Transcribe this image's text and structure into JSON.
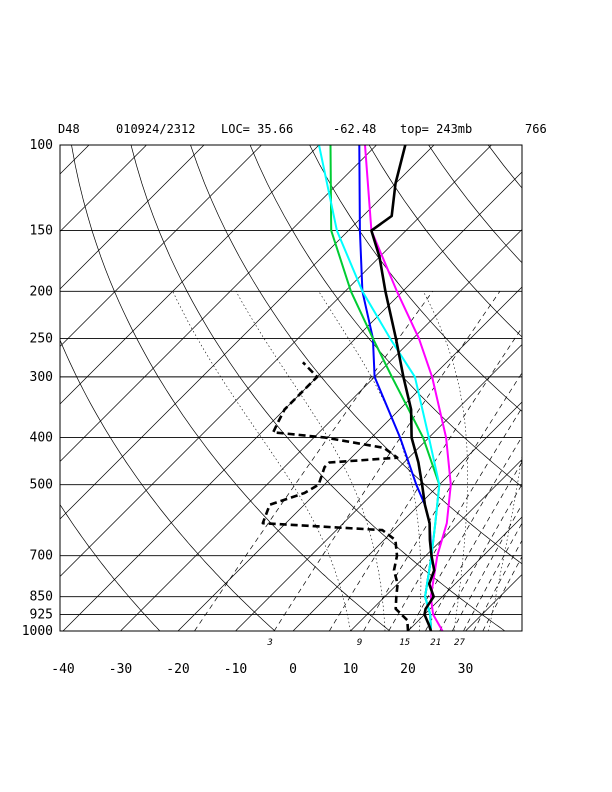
{
  "header": {
    "model": "D48",
    "datetime": "010924/2312",
    "loc": "LOC= 35.66",
    "lon": "-62.48",
    "top": "top= 243mb",
    "code": "766"
  },
  "chart_data": {
    "type": "line",
    "title": "",
    "skew_t": true,
    "y_log_scale": true,
    "xlabel": "",
    "ylabel": "",
    "xlim": [
      -40,
      40
    ],
    "ylim": [
      1000,
      100
    ],
    "x_ticks": [
      -40,
      -30,
      -20,
      -10,
      0,
      10,
      20,
      30
    ],
    "y_ticks": [
      100,
      150,
      200,
      250,
      300,
      400,
      500,
      700,
      850,
      925,
      1000
    ],
    "mixing_ratio_labels": [
      "3",
      "9",
      "15",
      "21",
      "27"
    ],
    "colors": {
      "temperature": "#000000",
      "dewpoint": "#000000",
      "parcel_blue": "#0000ff",
      "parcel_green": "#00cc33",
      "parcel_cyan": "#00ffff",
      "parcel_magenta": "#ff00ff"
    },
    "series": [
      {
        "key": "temperature",
        "style": "solid",
        "points": [
          [
            1000,
            24
          ],
          [
            970,
            22.5
          ],
          [
            925,
            20
          ],
          [
            900,
            19.2
          ],
          [
            850,
            18.5
          ],
          [
            800,
            15.5
          ],
          [
            750,
            14
          ],
          [
            700,
            11
          ],
          [
            650,
            8
          ],
          [
            600,
            5
          ],
          [
            550,
            1
          ],
          [
            500,
            -3
          ],
          [
            450,
            -7.5
          ],
          [
            400,
            -13
          ],
          [
            350,
            -18
          ],
          [
            300,
            -25
          ],
          [
            250,
            -33
          ],
          [
            200,
            -43
          ],
          [
            170,
            -50
          ],
          [
            150,
            -56
          ],
          [
            140,
            -55
          ],
          [
            120,
            -60
          ],
          [
            100,
            -65
          ]
        ]
      },
      {
        "key": "dewpoint",
        "style": "dashed",
        "points": [
          [
            1000,
            20
          ],
          [
            950,
            18
          ],
          [
            900,
            14
          ],
          [
            850,
            12
          ],
          [
            800,
            10
          ],
          [
            750,
            7
          ],
          [
            700,
            5
          ],
          [
            650,
            2
          ],
          [
            620,
            -2
          ],
          [
            600,
            -24
          ],
          [
            550,
            -26
          ],
          [
            520,
            -22
          ],
          [
            500,
            -21
          ],
          [
            460,
            -23
          ],
          [
            450,
            -23
          ],
          [
            440,
            -12
          ],
          [
            420,
            -16
          ],
          [
            400,
            -28
          ],
          [
            390,
            -38
          ],
          [
            370,
            -39
          ],
          [
            350,
            -40
          ],
          [
            300,
            -40
          ],
          [
            280,
            -45
          ]
        ]
      },
      {
        "key": "parcel_blue",
        "style": "solid",
        "points": [
          [
            1000,
            24
          ],
          [
            925,
            21
          ],
          [
            850,
            17
          ],
          [
            700,
            11
          ],
          [
            600,
            5
          ],
          [
            550,
            1
          ],
          [
            500,
            -4
          ],
          [
            400,
            -15
          ],
          [
            300,
            -30
          ],
          [
            250,
            -37
          ],
          [
            200,
            -47
          ],
          [
            150,
            -58
          ],
          [
            100,
            -73
          ]
        ]
      },
      {
        "key": "parcel_green",
        "style": "solid",
        "points": [
          [
            1000,
            24
          ],
          [
            925,
            21
          ],
          [
            850,
            17
          ],
          [
            700,
            11
          ],
          [
            600,
            6
          ],
          [
            500,
            0
          ],
          [
            400,
            -11
          ],
          [
            300,
            -27
          ],
          [
            250,
            -37
          ],
          [
            200,
            -49
          ],
          [
            150,
            -63
          ],
          [
            100,
            -78
          ]
        ]
      },
      {
        "key": "parcel_cyan",
        "style": "solid",
        "points": [
          [
            1000,
            24
          ],
          [
            925,
            21
          ],
          [
            850,
            17
          ],
          [
            700,
            11
          ],
          [
            600,
            6
          ],
          [
            500,
            0
          ],
          [
            400,
            -10
          ],
          [
            300,
            -23
          ],
          [
            250,
            -34
          ],
          [
            200,
            -47
          ],
          [
            150,
            -62
          ],
          [
            100,
            -80
          ]
        ]
      },
      {
        "key": "parcel_magenta",
        "style": "solid",
        "points": [
          [
            1000,
            26
          ],
          [
            925,
            21.5
          ],
          [
            850,
            18
          ],
          [
            700,
            12
          ],
          [
            600,
            8
          ],
          [
            500,
            2
          ],
          [
            400,
            -7
          ],
          [
            300,
            -20
          ],
          [
            250,
            -29
          ],
          [
            200,
            -41
          ],
          [
            150,
            -56
          ],
          [
            100,
            -72
          ]
        ]
      }
    ]
  }
}
